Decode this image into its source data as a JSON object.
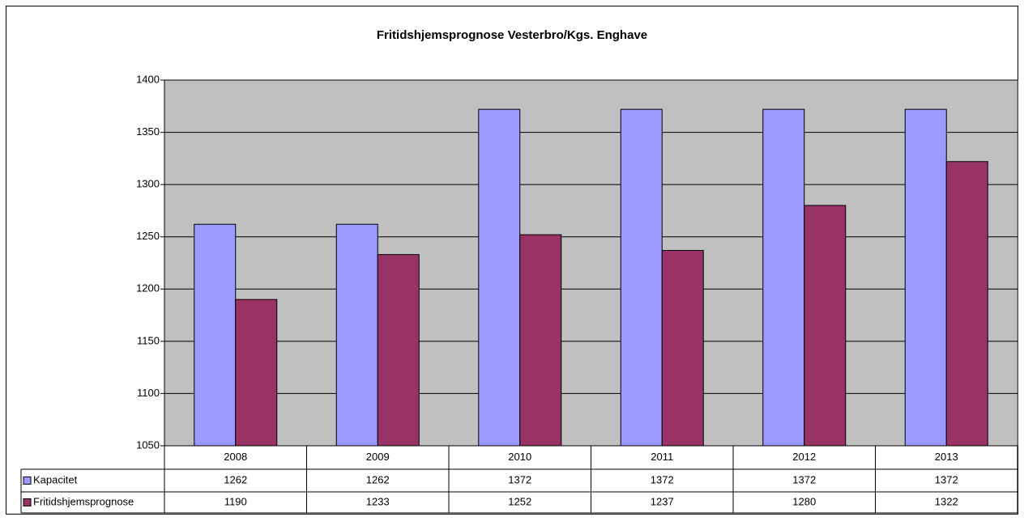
{
  "chart_data": {
    "type": "bar",
    "title": "Fritidshjemsprognose Vesterbro/Kgs. Enghave",
    "categories": [
      "2008",
      "2009",
      "2010",
      "2011",
      "2012",
      "2013"
    ],
    "series": [
      {
        "name": "Kapacitet",
        "color": "#9999ff",
        "values": [
          1262,
          1262,
          1372,
          1372,
          1372,
          1372
        ]
      },
      {
        "name": "Fritidshjemsprognose",
        "color": "#993366",
        "values": [
          1190,
          1233,
          1252,
          1237,
          1280,
          1322
        ]
      }
    ],
    "ylim": [
      1050,
      1400
    ],
    "yticks": [
      1050,
      1100,
      1150,
      1200,
      1250,
      1300,
      1350,
      1400
    ],
    "grid": true,
    "plot_background": "#c0c0c0"
  }
}
